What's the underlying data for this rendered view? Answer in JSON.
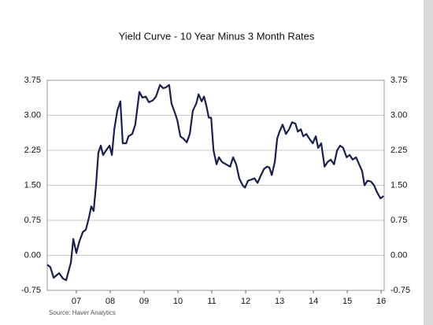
{
  "chart_data": {
    "type": "line",
    "title": "Yield Curve - 10 Year Minus 3 Month Rates",
    "source": "Source:  Haver Analytics",
    "x": [
      2006.64,
      2006.73,
      2006.83,
      2006.99,
      2007.11,
      2007.2,
      2007.34,
      2007.41,
      2007.5,
      2007.59,
      2007.69,
      2007.78,
      2007.87,
      2007.94,
      2008.01,
      2008.08,
      2008.15,
      2008.22,
      2008.29,
      2008.38,
      2008.48,
      2008.55,
      2008.62,
      2008.71,
      2008.8,
      2008.87,
      2008.97,
      2009.04,
      2009.15,
      2009.24,
      2009.36,
      2009.45,
      2009.55,
      2009.64,
      2009.76,
      2009.85,
      2009.97,
      2010.06,
      2010.15,
      2010.24,
      2010.31,
      2010.41,
      2010.48,
      2010.57,
      2010.66,
      2010.76,
      2010.85,
      2010.94,
      2011.04,
      2011.11,
      2011.2,
      2011.27,
      2011.34,
      2011.41,
      2011.48,
      2011.55,
      2011.64,
      2011.71,
      2011.8,
      2011.92,
      2012.04,
      2012.13,
      2012.22,
      2012.31,
      2012.41,
      2012.48,
      2012.57,
      2012.66,
      2012.76,
      2012.85,
      2012.94,
      2013.04,
      2013.13,
      2013.2,
      2013.27,
      2013.36,
      2013.43,
      2013.5,
      2013.59,
      2013.69,
      2013.78,
      2013.87,
      2013.97,
      2014.04,
      2014.13,
      2014.2,
      2014.29,
      2014.38,
      2014.48,
      2014.57,
      2014.64,
      2014.73,
      2014.83,
      2014.92,
      2015.01,
      2015.11,
      2015.2,
      2015.29,
      2015.38,
      2015.48,
      2015.57,
      2015.66,
      2015.76,
      2015.85,
      2015.94,
      2016.01,
      2016.1,
      2016.2,
      2016.29,
      2016.38,
      2016.48,
      2016.57
    ],
    "series": [
      {
        "color": "#1b1f4b",
        "values": [
          -0.2,
          -0.25,
          -0.48,
          -0.38,
          -0.5,
          -0.53,
          -0.15,
          0.35,
          0.05,
          0.3,
          0.5,
          0.55,
          0.8,
          1.05,
          0.95,
          1.5,
          2.2,
          2.35,
          2.15,
          2.25,
          2.35,
          2.15,
          2.7,
          3.1,
          3.3,
          2.4,
          2.4,
          2.55,
          2.6,
          2.8,
          3.5,
          3.38,
          3.4,
          3.28,
          3.32,
          3.4,
          3.65,
          3.58,
          3.6,
          3.65,
          3.25,
          3.05,
          2.9,
          2.55,
          2.5,
          2.42,
          2.6,
          3.1,
          3.25,
          3.45,
          3.3,
          3.4,
          3.2,
          2.95,
          2.95,
          2.25,
          1.95,
          2.1,
          2.0,
          1.95,
          1.9,
          2.1,
          1.95,
          1.65,
          1.5,
          1.45,
          1.6,
          1.62,
          1.65,
          1.55,
          1.7,
          1.85,
          1.9,
          1.88,
          1.72,
          2.0,
          2.5,
          2.65,
          2.8,
          2.6,
          2.7,
          2.85,
          2.82,
          2.65,
          2.7,
          2.55,
          2.6,
          2.5,
          2.4,
          2.55,
          2.3,
          2.4,
          1.9,
          2.0,
          2.05,
          1.95,
          2.25,
          2.35,
          2.3,
          2.1,
          2.15,
          2.05,
          2.1,
          1.95,
          1.8,
          1.5,
          1.6,
          1.58,
          1.5,
          1.35,
          1.22,
          1.27
        ]
      }
    ],
    "xlim": [
      2006.64,
      2016.59
    ],
    "xticks": [
      {
        "value": 2007.5,
        "label": "07"
      },
      {
        "value": 2008.5,
        "label": "08"
      },
      {
        "value": 2009.5,
        "label": "09"
      },
      {
        "value": 2010.5,
        "label": "10"
      },
      {
        "value": 2011.5,
        "label": "11"
      },
      {
        "value": 2012.5,
        "label": "12"
      },
      {
        "value": 2013.5,
        "label": "13"
      },
      {
        "value": 2014.5,
        "label": "14"
      },
      {
        "value": 2015.5,
        "label": "15"
      },
      {
        "value": 2016.5,
        "label": "16"
      }
    ],
    "ylim": [
      -0.75,
      3.75
    ],
    "yticks": [
      3.75,
      {
        "value": 3,
        "label": "3.00"
      },
      2.25,
      {
        "value": 1.5,
        "label": "1.50"
      },
      0.75,
      {
        "value": 0,
        "label": "0.00"
      },
      -0.75
    ],
    "grid": true
  }
}
